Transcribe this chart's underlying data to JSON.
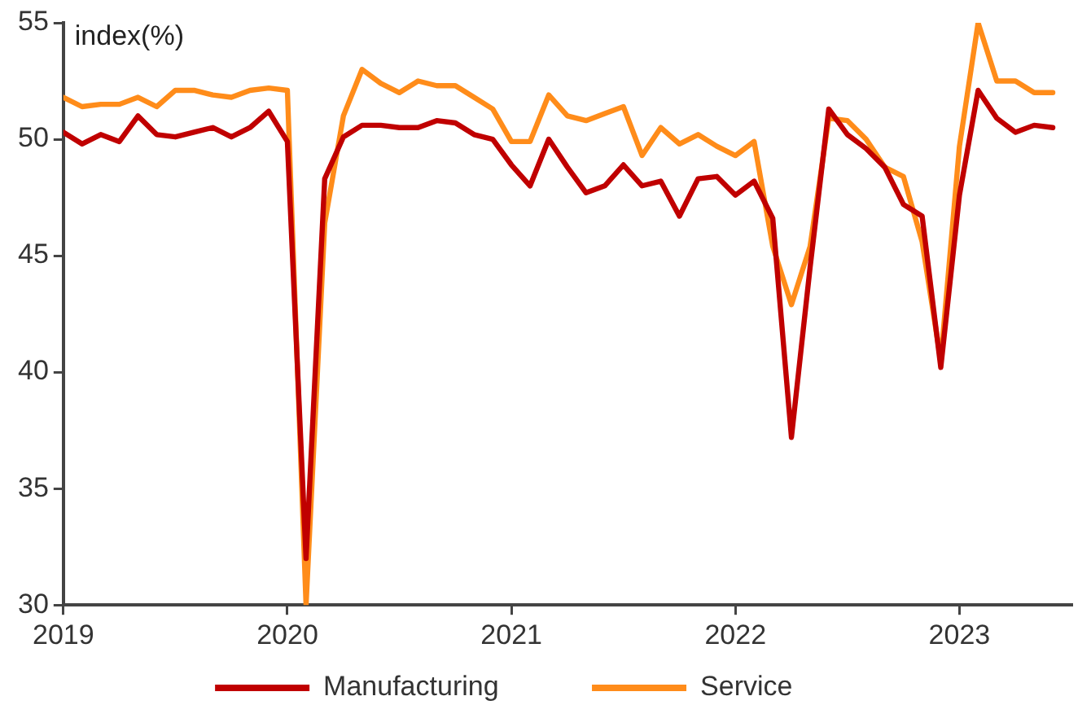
{
  "chart_data": {
    "type": "line",
    "ylabel": "index(%)",
    "x": [
      "2019-01",
      "2019-02",
      "2019-03",
      "2019-04",
      "2019-05",
      "2019-06",
      "2019-07",
      "2019-08",
      "2019-09",
      "2019-10",
      "2019-11",
      "2019-12",
      "2020-01",
      "2020-02",
      "2020-03",
      "2020-04",
      "2020-05",
      "2020-06",
      "2020-07",
      "2020-08",
      "2020-09",
      "2020-10",
      "2020-11",
      "2020-12",
      "2021-01",
      "2021-02",
      "2021-03",
      "2021-04",
      "2021-05",
      "2021-06",
      "2021-07",
      "2021-08",
      "2021-09",
      "2021-10",
      "2021-11",
      "2021-12",
      "2022-01",
      "2022-02",
      "2022-03",
      "2022-04",
      "2022-05",
      "2022-06",
      "2022-07",
      "2022-08",
      "2022-09",
      "2022-10",
      "2022-11",
      "2022-12",
      "2023-01",
      "2023-02",
      "2023-03",
      "2023-04",
      "2023-05",
      "2023-06"
    ],
    "series": [
      {
        "name": "Manufacturing",
        "color": "#c00000",
        "values": [
          50.3,
          49.8,
          50.2,
          49.9,
          51.0,
          50.2,
          50.1,
          50.3,
          50.5,
          50.1,
          50.5,
          51.2,
          49.9,
          32,
          48.3,
          50.1,
          50.6,
          50.6,
          50.5,
          50.5,
          50.8,
          50.7,
          50.2,
          50.0,
          48.9,
          48.0,
          50.0,
          48.8,
          47.7,
          48.0,
          48.9,
          48.0,
          48.2,
          46.7,
          48.3,
          48.4,
          47.6,
          48.2,
          46.6,
          37.2,
          44.5,
          51.3,
          50.2,
          49.6,
          48.8,
          47.2,
          46.7,
          40.2,
          47.6,
          52.1,
          50.9,
          50.3,
          50.6,
          50.5
        ]
      },
      {
        "name": "Service",
        "color": "#ff8c1a",
        "values": [
          51.8,
          51.4,
          51.5,
          51.5,
          51.8,
          51.4,
          52.1,
          52.1,
          51.9,
          51.8,
          52.1,
          52.2,
          52.1,
          30,
          46.4,
          51.0,
          53.0,
          52.4,
          52.0,
          52.5,
          52.3,
          52.3,
          51.8,
          51.3,
          49.9,
          49.9,
          51.9,
          51.0,
          50.8,
          51.1,
          51.4,
          49.3,
          50.5,
          49.8,
          50.2,
          49.7,
          49.3,
          49.9,
          45.4,
          42.9,
          45.4,
          50.9,
          50.8,
          50.0,
          48.8,
          48.4,
          45.6,
          40.5,
          49.7,
          55.0,
          52.5,
          52.5,
          52.0,
          52.0
        ]
      }
    ],
    "xlim": [
      "2019-01",
      "2023-07"
    ],
    "xticks": [
      "2019",
      "2020",
      "2021",
      "2022",
      "2023"
    ],
    "ylim": [
      30,
      55
    ],
    "yticks": [
      30,
      35,
      40,
      45,
      50,
      55
    ],
    "grid": false,
    "legend": "bottom",
    "marker": "none",
    "line_style": "solid"
  }
}
